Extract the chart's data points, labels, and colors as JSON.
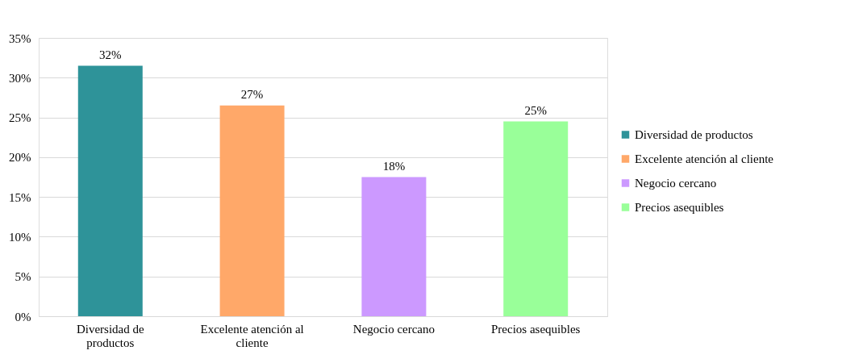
{
  "chart_data": {
    "type": "bar",
    "categories": [
      "Diversidad de productos",
      "Excelente atención al cliente",
      "Negocio cercano",
      "Precios asequibles"
    ],
    "series": [
      {
        "name": "Diversidad de productos",
        "color": "#2e9399",
        "values": [
          31.5,
          null,
          null,
          null
        ],
        "value_labels": [
          "32%",
          null,
          null,
          null
        ]
      },
      {
        "name": "Excelente atención al cliente",
        "color": "#ffa869",
        "values": [
          null,
          26.5,
          null,
          null
        ],
        "value_labels": [
          null,
          "27%",
          null,
          null
        ]
      },
      {
        "name": "Negocio cercano",
        "color": "#cc99ff",
        "values": [
          null,
          null,
          17.5,
          null
        ],
        "value_labels": [
          null,
          null,
          "18%",
          null
        ]
      },
      {
        "name": "Precios asequibles",
        "color": "#99ff99",
        "values": [
          null,
          null,
          null,
          24.5
        ],
        "value_labels": [
          null,
          null,
          null,
          "25%"
        ]
      }
    ],
    "ylim": [
      0,
      35
    ],
    "yticks": [
      {
        "value": 0,
        "label": "0%"
      },
      {
        "value": 5,
        "label": "5%"
      },
      {
        "value": 10,
        "label": "10%"
      },
      {
        "value": 15,
        "label": "15%"
      },
      {
        "value": 20,
        "label": "20%"
      },
      {
        "value": 25,
        "label": "25%"
      },
      {
        "value": 30,
        "label": "30%"
      },
      {
        "value": 35,
        "label": "35%"
      }
    ],
    "grid": "y",
    "legend": "right"
  }
}
